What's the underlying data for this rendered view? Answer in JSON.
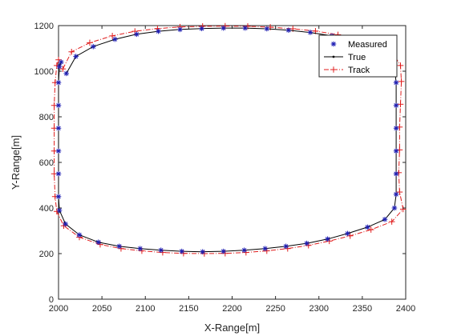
{
  "chart_data": {
    "type": "line",
    "title": "",
    "xlabel": "X-Range[m]",
    "ylabel": "Y-Range[m]",
    "xlim": [
      2000,
      2400
    ],
    "ylim": [
      0,
      1200
    ],
    "xticks": [
      2000,
      2050,
      2100,
      2150,
      2200,
      2250,
      2300,
      2350,
      2400
    ],
    "yticks": [
      0,
      200,
      400,
      600,
      800,
      1000,
      1200
    ],
    "grid": false,
    "legend_position": "top-right",
    "colors": {
      "measured": "#1f1fb4",
      "true": "#000000",
      "track": "#e01c1c"
    },
    "series": [
      {
        "name": "Measured",
        "marker": "asterisk",
        "line": "none",
        "x": [
          2009,
          2020,
          2040,
          2065,
          2090,
          2115,
          2140,
          2165,
          2190,
          2215,
          2240,
          2265,
          2290,
          2315,
          2340,
          2362,
          2378,
          2387,
          2389,
          2389,
          2389,
          2389,
          2389,
          2389,
          2387,
          2376,
          2356,
          2333,
          2310,
          2286,
          2262,
          2238,
          2214,
          2190,
          2166,
          2142,
          2118,
          2094,
          2070,
          2046,
          2024,
          2008,
          2001,
          2000,
          2000,
          2000,
          2000,
          2000,
          2000,
          2001,
          2003
        ],
        "y": [
          990,
          1065,
          1108,
          1140,
          1162,
          1175,
          1183,
          1187,
          1189,
          1189,
          1186,
          1180,
          1170,
          1155,
          1133,
          1105,
          1070,
          1020,
          950,
          850,
          750,
          650,
          550,
          460,
          400,
          350,
          316,
          288,
          264,
          245,
          232,
          222,
          215,
          210,
          208,
          210,
          215,
          222,
          232,
          250,
          282,
          330,
          390,
          450,
          550,
          650,
          750,
          850,
          950,
          1020,
          1040
        ]
      },
      {
        "name": "True",
        "marker": "dot",
        "line": "solid",
        "x": [
          2009,
          2020,
          2040,
          2065,
          2090,
          2115,
          2140,
          2165,
          2190,
          2215,
          2240,
          2265,
          2290,
          2315,
          2340,
          2362,
          2378,
          2387,
          2389,
          2389,
          2389,
          2389,
          2389,
          2389,
          2387,
          2376,
          2356,
          2333,
          2310,
          2286,
          2262,
          2238,
          2214,
          2190,
          2166,
          2142,
          2118,
          2094,
          2070,
          2046,
          2024,
          2008,
          2001,
          2000,
          2000,
          2000,
          2000,
          2000,
          2000,
          2001,
          2003
        ],
        "y": [
          990,
          1065,
          1108,
          1140,
          1162,
          1175,
          1183,
          1187,
          1189,
          1189,
          1186,
          1180,
          1170,
          1155,
          1133,
          1105,
          1070,
          1020,
          950,
          850,
          750,
          650,
          550,
          460,
          400,
          350,
          316,
          288,
          264,
          245,
          232,
          222,
          215,
          210,
          208,
          210,
          215,
          222,
          232,
          250,
          282,
          330,
          390,
          450,
          550,
          650,
          750,
          850,
          950,
          1020,
          1040
        ]
      },
      {
        "name": "Track",
        "marker": "plus",
        "line": "dash-dot",
        "x": [
          2005,
          2015,
          2036,
          2062,
          2088,
          2114,
          2140,
          2166,
          2192,
          2218,
          2244,
          2270,
          2296,
          2322,
          2348,
          2370,
          2386,
          2394,
          2395,
          2394,
          2393,
          2393,
          2392,
          2393,
          2397,
          2384,
          2360,
          2336,
          2312,
          2288,
          2264,
          2240,
          2216,
          2192,
          2168,
          2144,
          2120,
          2096,
          2072,
          2048,
          2024,
          2006,
          1998,
          1996,
          1995,
          1995,
          1995,
          1995,
          1996,
          1998,
          2000
        ],
        "y": [
          1010,
          1085,
          1125,
          1155,
          1175,
          1187,
          1194,
          1197,
          1198,
          1197,
          1193,
          1186,
          1176,
          1160,
          1138,
          1110,
          1075,
          1025,
          955,
          855,
          755,
          655,
          555,
          470,
          395,
          340,
          305,
          278,
          255,
          236,
          222,
          212,
          205,
          201,
          200,
          201,
          205,
          212,
          222,
          240,
          272,
          322,
          385,
          450,
          550,
          650,
          750,
          850,
          950,
          1025,
          1050
        ]
      }
    ]
  }
}
